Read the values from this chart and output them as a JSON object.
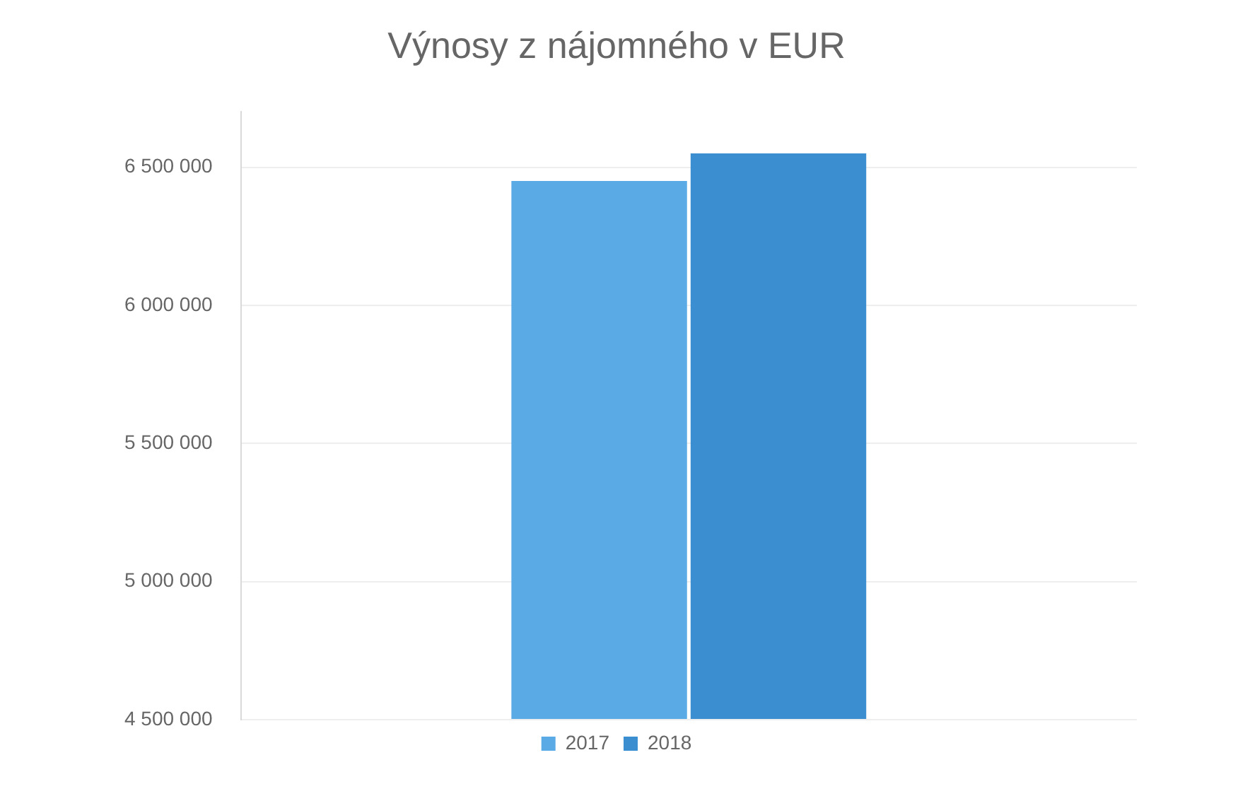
{
  "chart_data": {
    "type": "bar",
    "title": "Výnosy z nájomného v EUR",
    "categories": [
      null
    ],
    "series": [
      {
        "name": "2017",
        "color": "#5aaae6",
        "values": [
          6450000
        ]
      },
      {
        "name": "2018",
        "color": "#3b8ed0",
        "values": [
          6550000
        ]
      }
    ],
    "ylim": [
      4500000,
      6700000
    ],
    "yticks": [
      {
        "value": 4500000,
        "label": "4 500 000"
      },
      {
        "value": 5000000,
        "label": "5 000 000"
      },
      {
        "value": 5500000,
        "label": "5 500 000"
      },
      {
        "value": 6000000,
        "label": "6 000 000"
      },
      {
        "value": 6500000,
        "label": "6 500 000"
      }
    ],
    "grid": "y",
    "legend": "bottom"
  }
}
